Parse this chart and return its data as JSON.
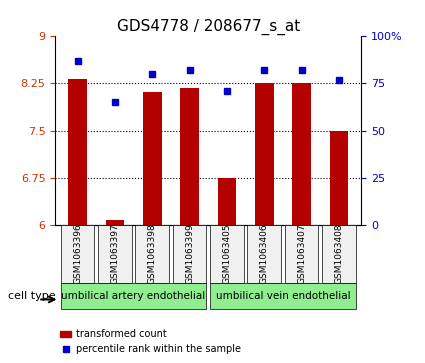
{
  "title": "GDS4778 / 208677_s_at",
  "samples": [
    "GSM1063396",
    "GSM1063397",
    "GSM1063398",
    "GSM1063399",
    "GSM1063405",
    "GSM1063406",
    "GSM1063407",
    "GSM1063408"
  ],
  "bar_values": [
    8.32,
    6.08,
    8.12,
    8.18,
    6.75,
    8.26,
    8.26,
    7.5
  ],
  "dot_values": [
    87,
    65,
    80,
    82,
    71,
    82,
    82,
    77
  ],
  "cell_type_labels": [
    "umbilical artery endothelial",
    "umbilical vein endothelial"
  ],
  "cell_type_groups": [
    4,
    4
  ],
  "bar_color": "#b30000",
  "dot_color": "#0000cc",
  "left_yticks": [
    6,
    6.75,
    7.5,
    8.25,
    9
  ],
  "right_yticks": [
    0,
    25,
    50,
    75,
    100
  ],
  "ylim_left": [
    6,
    9
  ],
  "ylim_right": [
    0,
    100
  ],
  "bg_color": "#f0f0f0",
  "cell_type_bg": "#90EE90",
  "legend_bar_label": "transformed count",
  "legend_dot_label": "percentile rank within the sample",
  "cell_type_header": "cell type"
}
